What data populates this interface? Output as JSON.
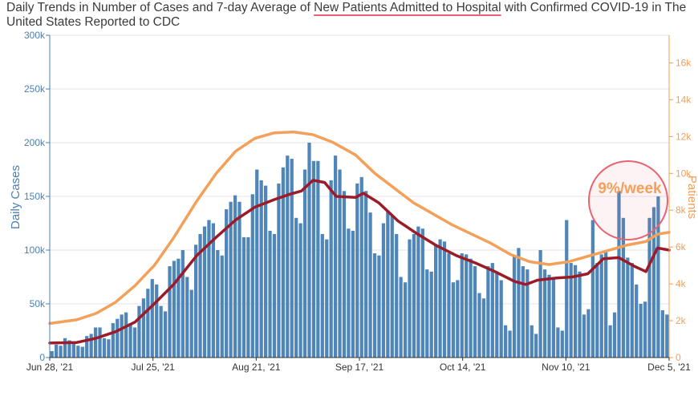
{
  "title": {
    "before": "Daily Trends in Number of Cases and 7-day Average of ",
    "highlight": "New Patients Admitted to Hospital",
    "after": " with Confirmed COVID-19 in The United States Reported to CDC"
  },
  "annotation": {
    "text": "9%/week"
  },
  "colors": {
    "bars": "#4f86b9",
    "cases_avg": "#9b1c28",
    "hosp_avg": "#f2a05a",
    "left_axis": "#4a7fb5",
    "right_axis": "#f2a05a",
    "grid": "#dfe3ea",
    "annotation": "#e8636f",
    "annotation_text": "#f2a05a"
  },
  "chart_data": {
    "type": "bar+line",
    "x_start": "2021-06-28",
    "x_end": "2021-12-05",
    "x_ticks": [
      "Jun 28, '21",
      "Jul 25, '21",
      "Aug 21, '21",
      "Sep 17, '21",
      "Oct 14, '21",
      "Nov 10, '21",
      "Dec 5, '21"
    ],
    "ylabel_left": "Daily Cases",
    "ylabel_right": "Patients",
    "ylim_left": [
      0,
      300000
    ],
    "ylim_right": [
      0,
      17500
    ],
    "y_ticks_left": [
      "0",
      "50k",
      "100k",
      "150k",
      "200k",
      "250k",
      "300k"
    ],
    "y_ticks_right": [
      "0",
      "2k",
      "4k",
      "6k",
      "8k",
      "10k",
      "12k",
      "14k",
      "16k"
    ],
    "grid": true,
    "series": [
      {
        "name": "Daily Cases",
        "kind": "bar",
        "axis": "left",
        "values": [
          6000,
          12000,
          11000,
          18000,
          16000,
          14000,
          11000,
          10000,
          20000,
          22000,
          28000,
          28000,
          18000,
          17000,
          32000,
          36000,
          40000,
          42000,
          32000,
          28000,
          48000,
          55000,
          64000,
          73000,
          68000,
          48000,
          43000,
          85000,
          90000,
          92000,
          100000,
          75000,
          63000,
          105000,
          115000,
          122000,
          128000,
          125000,
          100000,
          95000,
          138000,
          145000,
          151000,
          145000,
          112000,
          112000,
          152000,
          175000,
          165000,
          160000,
          118000,
          115000,
          162000,
          177000,
          188000,
          185000,
          130000,
          125000,
          175000,
          200000,
          183000,
          183000,
          115000,
          110000,
          165000,
          188000,
          175000,
          155000,
          120000,
          118000,
          162000,
          168000,
          155000,
          135000,
          97000,
          95000,
          125000,
          137000,
          132000,
          115000,
          75000,
          70000,
          110000,
          115000,
          122000,
          120000,
          82000,
          80000,
          105000,
          110000,
          108000,
          97000,
          70000,
          72000,
          97000,
          96000,
          92000,
          85000,
          60000,
          55000,
          85000,
          88000,
          80000,
          72000,
          30000,
          25000,
          95000,
          102000,
          85000,
          82000,
          30000,
          22000,
          100000,
          82000,
          77000,
          74000,
          28000,
          25000,
          128000,
          88000,
          86000,
          80000,
          40000,
          45000,
          128000,
          88000,
          96000,
          98000,
          30000,
          42000,
          155000,
          130000,
          93000,
          88000,
          68000,
          50000,
          52000,
          130000,
          140000,
          150000,
          44000,
          40000
        ],
        "note": "one bar per day, Jun 28 - Dec 5 2021 (values estimated from chart)"
      },
      {
        "name": "Cases 7-day average",
        "kind": "line",
        "axis": "left",
        "points": [
          [
            "2021-06-28",
            13500
          ],
          [
            "2021-07-05",
            14000
          ],
          [
            "2021-07-10",
            18000
          ],
          [
            "2021-07-15",
            24000
          ],
          [
            "2021-07-20",
            33000
          ],
          [
            "2021-07-25",
            50000
          ],
          [
            "2021-07-30",
            68000
          ],
          [
            "2021-08-05",
            95000
          ],
          [
            "2021-08-10",
            112000
          ],
          [
            "2021-08-15",
            128000
          ],
          [
            "2021-08-20",
            140000
          ],
          [
            "2021-08-25",
            147000
          ],
          [
            "2021-08-29",
            152000
          ],
          [
            "2021-09-01",
            155000
          ],
          [
            "2021-09-04",
            165000
          ],
          [
            "2021-09-07",
            163000
          ],
          [
            "2021-09-10",
            150000
          ],
          [
            "2021-09-15",
            149000
          ],
          [
            "2021-09-17",
            153000
          ],
          [
            "2021-09-21",
            144000
          ],
          [
            "2021-09-26",
            127000
          ],
          [
            "2021-10-01",
            115000
          ],
          [
            "2021-10-06",
            104000
          ],
          [
            "2021-10-11",
            95000
          ],
          [
            "2021-10-16",
            88000
          ],
          [
            "2021-10-21",
            80000
          ],
          [
            "2021-10-26",
            71000
          ],
          [
            "2021-10-29",
            68000
          ],
          [
            "2021-11-01",
            72000
          ],
          [
            "2021-11-06",
            74000
          ],
          [
            "2021-11-10",
            75000
          ],
          [
            "2021-11-14",
            78000
          ],
          [
            "2021-11-18",
            92000
          ],
          [
            "2021-11-22",
            93000
          ],
          [
            "2021-11-26",
            85000
          ],
          [
            "2021-11-29",
            80000
          ],
          [
            "2021-12-02",
            102000
          ],
          [
            "2021-12-05",
            100000
          ]
        ]
      },
      {
        "name": "New Patients Admitted to Hospital (7-day average)",
        "kind": "line",
        "axis": "right",
        "points": [
          [
            "2021-06-28",
            1850
          ],
          [
            "2021-07-05",
            2050
          ],
          [
            "2021-07-10",
            2400
          ],
          [
            "2021-07-15",
            3000
          ],
          [
            "2021-07-20",
            3900
          ],
          [
            "2021-07-25",
            5000
          ],
          [
            "2021-07-30",
            6500
          ],
          [
            "2021-08-05",
            8500
          ],
          [
            "2021-08-10",
            10000
          ],
          [
            "2021-08-15",
            11200
          ],
          [
            "2021-08-20",
            11900
          ],
          [
            "2021-08-25",
            12200
          ],
          [
            "2021-08-30",
            12250
          ],
          [
            "2021-09-04",
            12100
          ],
          [
            "2021-09-09",
            11700
          ],
          [
            "2021-09-15",
            11000
          ],
          [
            "2021-09-20",
            10000
          ],
          [
            "2021-09-25",
            9200
          ],
          [
            "2021-09-30",
            8400
          ],
          [
            "2021-10-05",
            7800
          ],
          [
            "2021-10-10",
            7200
          ],
          [
            "2021-10-15",
            6700
          ],
          [
            "2021-10-20",
            6200
          ],
          [
            "2021-10-25",
            5600
          ],
          [
            "2021-10-30",
            5200
          ],
          [
            "2021-11-04",
            5050
          ],
          [
            "2021-11-09",
            5200
          ],
          [
            "2021-11-14",
            5500
          ],
          [
            "2021-11-19",
            5800
          ],
          [
            "2021-11-24",
            6100
          ],
          [
            "2021-11-29",
            6300
          ],
          [
            "2021-12-02",
            6700
          ],
          [
            "2021-12-05",
            6800
          ]
        ]
      }
    ]
  }
}
